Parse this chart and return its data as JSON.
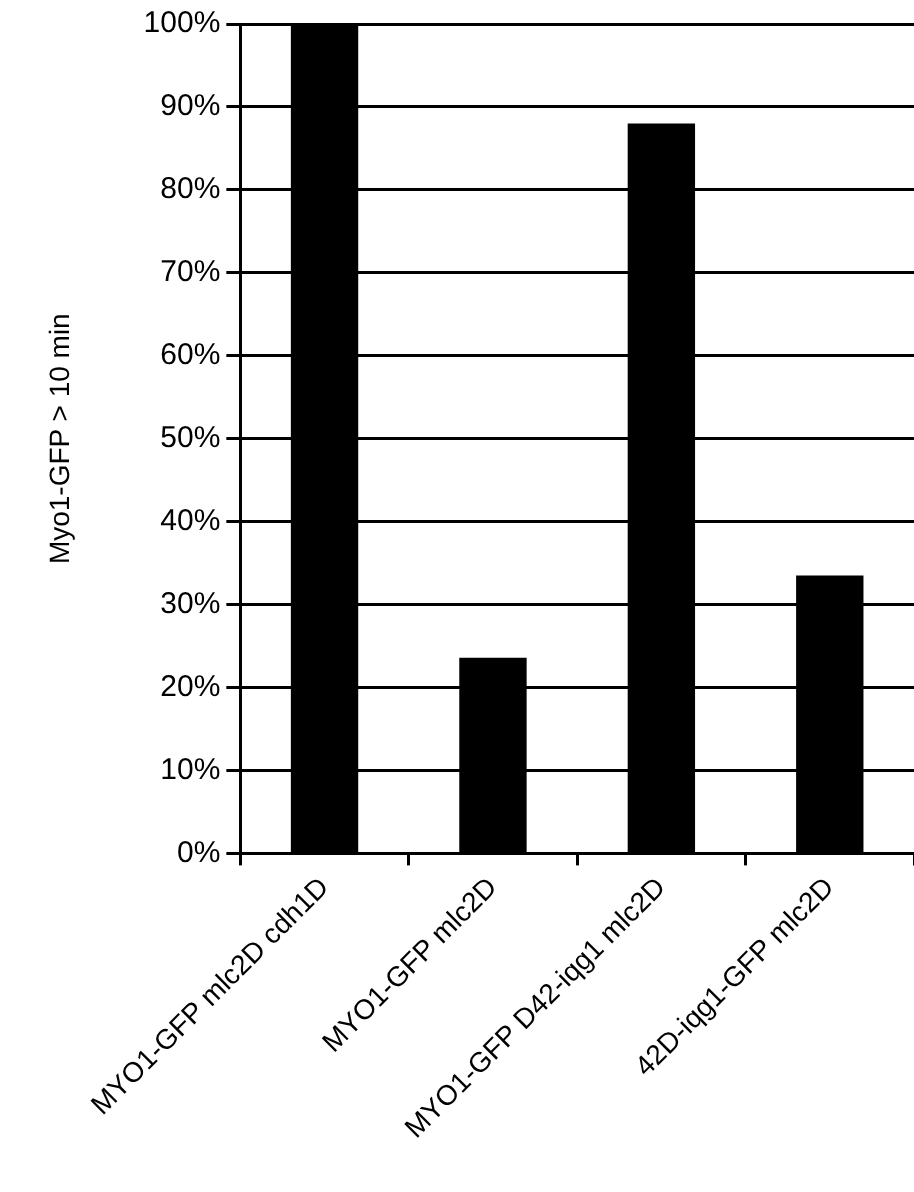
{
  "chart_data": {
    "type": "bar",
    "ylabel": "Myo1-GFP > 10 min",
    "categories": [
      "MYO1-GFP mlc2D cdh1D",
      "MYO1-GFP mlc2D",
      "MYO1-GFP D42-iqg1 mlc2D",
      "42D-iqg1-GFP mlc2D"
    ],
    "values": [
      100,
      23.6,
      88,
      33.5
    ],
    "color": "#000000",
    "ylim": [
      0,
      100
    ],
    "yticks": [
      {
        "value": 0,
        "label": "0%"
      },
      {
        "value": 10,
        "label": "10%"
      },
      {
        "value": 20,
        "label": "20%"
      },
      {
        "value": 30,
        "label": "30%"
      },
      {
        "value": 40,
        "label": "40%"
      },
      {
        "value": 50,
        "label": "50%"
      },
      {
        "value": 60,
        "label": "60%"
      },
      {
        "value": 70,
        "label": "70%"
      },
      {
        "value": 80,
        "label": "80%"
      },
      {
        "value": 90,
        "label": "90%"
      },
      {
        "value": 100,
        "label": "100%"
      }
    ],
    "grid": "y",
    "legend": false
  }
}
